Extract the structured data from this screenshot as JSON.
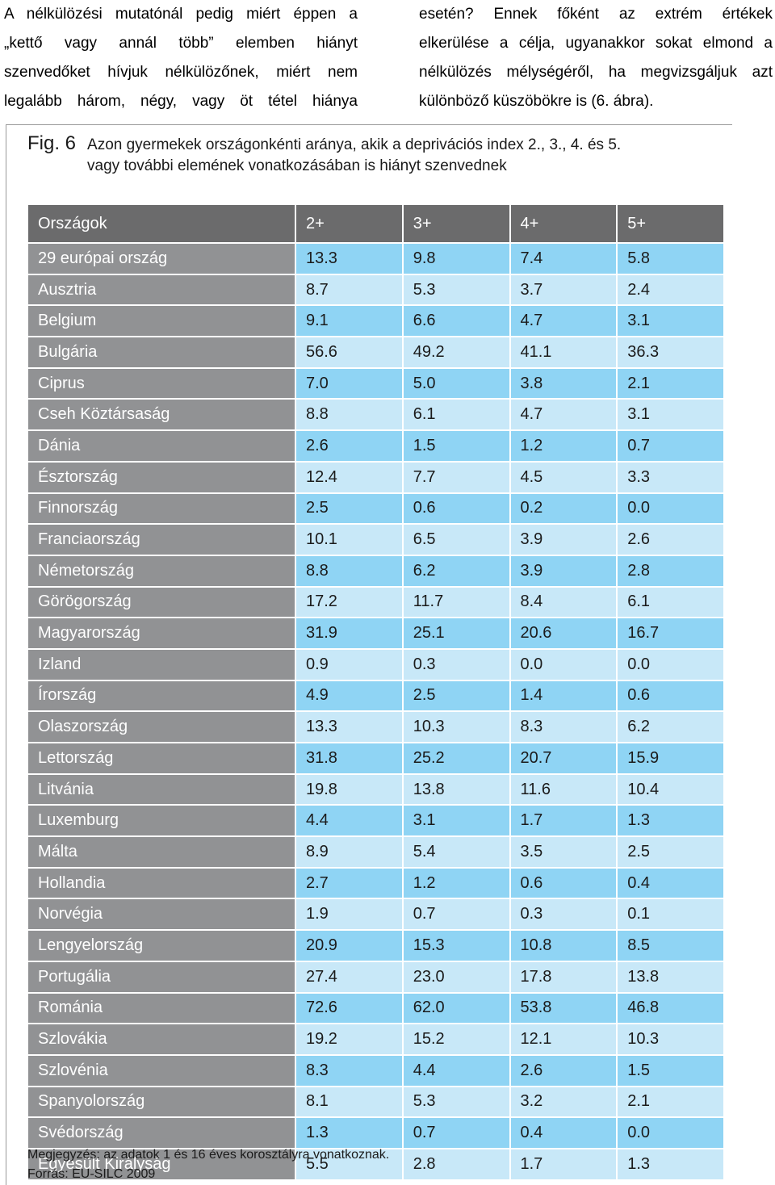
{
  "text": {
    "left_lines": [
      "A nélkülözési mutatónál pedig miért éppen a",
      "„kettő vagy annál több” elemben hiányt",
      "szenvedőket hívjuk nélkülözőnek, miért nem",
      "legalább három, négy, vagy öt tétel hiánya"
    ],
    "right_lines": [
      "esetén? Ennek főként az extrém értékek",
      "elkerülése a célja, ugyanakkor sokat elmond a",
      "nélkülözés mélységéről, ha megvizsgáljuk azt",
      "különböző küszöbökre is (6. ábra)."
    ]
  },
  "figure": {
    "label": "Fig. 6",
    "title_line1": "Azon gyermekek országonkénti aránya, akik a deprivációs index 2., 3., 4. és 5.",
    "title_line2": "vagy további elemének vonatkozásában is hiányt szenvednek",
    "note": "Megjegyzés: az adatok 1 és 16 éves korosztályra vonatkoznak.",
    "source": "Forrás: EU-SILC 2009"
  },
  "table": {
    "headers": [
      "Országok",
      "2+",
      "3+",
      "4+",
      "5+"
    ],
    "rows": [
      [
        "29 európai ország",
        "13.3",
        "9.8",
        "7.4",
        "5.8"
      ],
      [
        "Ausztria",
        "8.7",
        "5.3",
        "3.7",
        "2.4"
      ],
      [
        "Belgium",
        "9.1",
        "6.6",
        "4.7",
        "3.1"
      ],
      [
        "Bulgária",
        "56.6",
        "49.2",
        "41.1",
        "36.3"
      ],
      [
        "Ciprus",
        "7.0",
        "5.0",
        "3.8",
        "2.1"
      ],
      [
        "Cseh Köztársaság",
        "8.8",
        "6.1",
        "4.7",
        "3.1"
      ],
      [
        "Dánia",
        "2.6",
        "1.5",
        "1.2",
        "0.7"
      ],
      [
        "Észtország",
        "12.4",
        "7.7",
        "4.5",
        "3.3"
      ],
      [
        "Finnország",
        "2.5",
        "0.6",
        "0.2",
        "0.0"
      ],
      [
        "Franciaország",
        "10.1",
        "6.5",
        "3.9",
        "2.6"
      ],
      [
        "Németország",
        "8.8",
        "6.2",
        "3.9",
        "2.8"
      ],
      [
        "Görögország",
        "17.2",
        "11.7",
        "8.4",
        "6.1"
      ],
      [
        "Magyarország",
        "31.9",
        "25.1",
        "20.6",
        "16.7"
      ],
      [
        "Izland",
        "0.9",
        "0.3",
        "0.0",
        "0.0"
      ],
      [
        "Írország",
        "4.9",
        "2.5",
        "1.4",
        "0.6"
      ],
      [
        "Olaszország",
        "13.3",
        "10.3",
        "8.3",
        "6.2"
      ],
      [
        "Lettország",
        "31.8",
        "25.2",
        "20.7",
        "15.9"
      ],
      [
        "Litvánia",
        "19.8",
        "13.8",
        "11.6",
        "10.4"
      ],
      [
        "Luxemburg",
        "4.4",
        "3.1",
        "1.7",
        "1.3"
      ],
      [
        "Málta",
        "8.9",
        "5.4",
        "3.5",
        "2.5"
      ],
      [
        "Hollandia",
        "2.7",
        "1.2",
        "0.6",
        "0.4"
      ],
      [
        "Norvégia",
        "1.9",
        "0.7",
        "0.3",
        "0.1"
      ],
      [
        "Lengyelország",
        "20.9",
        "15.3",
        "10.8",
        "8.5"
      ],
      [
        "Portugália",
        "27.4",
        "23.0",
        "17.8",
        "13.8"
      ],
      [
        "Románia",
        "72.6",
        "62.0",
        "53.8",
        "46.8"
      ],
      [
        "Szlovákia",
        "19.2",
        "15.2",
        "12.1",
        "10.3"
      ],
      [
        "Szlovénia",
        "8.3",
        "4.4",
        "2.6",
        "1.5"
      ],
      [
        "Spanyolország",
        "8.1",
        "5.3",
        "3.2",
        "2.1"
      ],
      [
        "Svédország",
        "1.3",
        "0.7",
        "0.4",
        "0.0"
      ],
      [
        "Egyesült Királyság",
        "5.5",
        "2.8",
        "1.7",
        "1.3"
      ]
    ]
  },
  "colors": {
    "header_bg": "#6b6b6c",
    "country_bg": "#919294",
    "value_dark": "#8fd4f4",
    "value_light": "#c8e8f8"
  }
}
